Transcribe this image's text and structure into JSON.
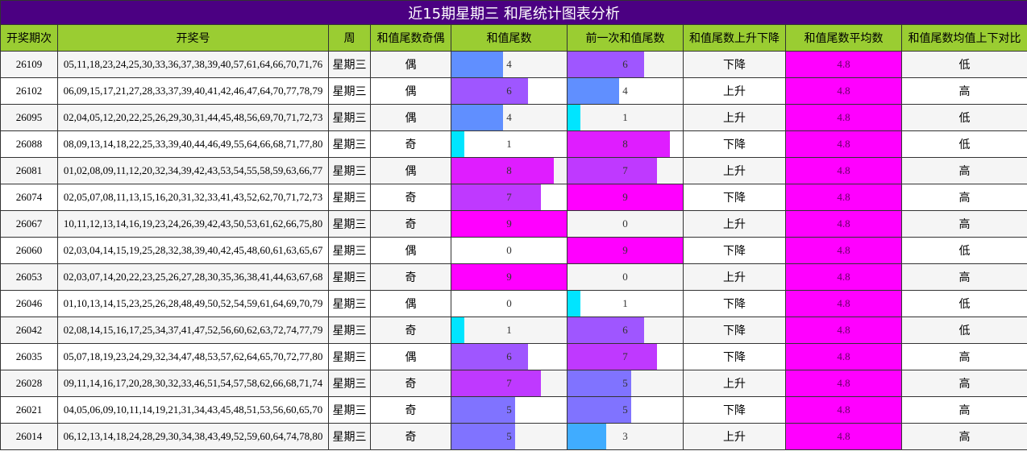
{
  "title": "近15期星期三 和尾统计图表分析",
  "table": {
    "headers": [
      "开奖期次",
      "开奖号",
      "周",
      "和值尾数奇偶",
      "和值尾数",
      "前一次和值尾数",
      "和值尾数上升下降",
      "和值尾数平均数",
      "和值尾数均值上下对比"
    ],
    "rows": [
      [
        "26109",
        "05,11,18,23,24,25,30,33,36,37,38,39,40,57,61,64,66,70,71,76",
        "星期三",
        "偶",
        4,
        6,
        "下降",
        4.8,
        "低"
      ],
      [
        "26102",
        "06,09,15,17,21,27,28,33,37,39,40,41,42,46,47,64,70,77,78,79",
        "星期三",
        "偶",
        6,
        4,
        "上升",
        4.8,
        "高"
      ],
      [
        "26095",
        "02,04,05,12,20,22,25,26,29,30,31,44,45,48,56,69,70,71,72,73",
        "星期三",
        "偶",
        4,
        1,
        "上升",
        4.8,
        "低"
      ],
      [
        "26088",
        "08,09,13,14,18,22,25,33,39,40,44,46,49,55,64,66,68,71,77,80",
        "星期三",
        "奇",
        1,
        8,
        "下降",
        4.8,
        "低"
      ],
      [
        "26081",
        "01,02,08,09,11,12,20,32,34,39,42,43,53,54,55,58,59,63,66,77",
        "星期三",
        "偶",
        8,
        7,
        "上升",
        4.8,
        "高"
      ],
      [
        "26074",
        "02,05,07,08,11,13,15,16,20,31,32,33,41,43,52,62,70,71,72,73",
        "星期三",
        "奇",
        7,
        9,
        "下降",
        4.8,
        "高"
      ],
      [
        "26067",
        "10,11,12,13,14,16,19,23,24,26,39,42,43,50,53,61,62,66,75,80",
        "星期三",
        "奇",
        9,
        0,
        "上升",
        4.8,
        "高"
      ],
      [
        "26060",
        "02,03,04,14,15,19,25,28,32,38,39,40,42,45,48,60,61,63,65,67",
        "星期三",
        "偶",
        0,
        9,
        "下降",
        4.8,
        "低"
      ],
      [
        "26053",
        "02,03,07,14,20,22,23,25,26,27,28,30,35,36,38,41,44,63,67,68",
        "星期三",
        "奇",
        9,
        0,
        "上升",
        4.8,
        "高"
      ],
      [
        "26046",
        "01,10,13,14,15,23,25,26,28,48,49,50,52,54,59,61,64,69,70,79",
        "星期三",
        "偶",
        0,
        1,
        "下降",
        4.8,
        "低"
      ],
      [
        "26042",
        "02,08,14,15,16,17,25,34,37,41,47,52,56,60,62,63,72,74,77,79",
        "星期三",
        "奇",
        1,
        6,
        "下降",
        4.8,
        "低"
      ],
      [
        "26035",
        "05,07,18,19,23,24,29,32,34,47,48,53,57,62,64,65,70,72,77,80",
        "星期三",
        "偶",
        6,
        7,
        "下降",
        4.8,
        "高"
      ],
      [
        "26028",
        "09,11,14,16,17,20,28,30,32,33,46,51,54,57,58,62,66,68,71,74",
        "星期三",
        "奇",
        7,
        5,
        "上升",
        4.8,
        "高"
      ],
      [
        "26021",
        "04,05,06,09,10,11,14,19,21,31,34,43,45,48,51,53,56,60,65,70",
        "星期三",
        "奇",
        5,
        5,
        "下降",
        4.8,
        "高"
      ],
      [
        "26014",
        "06,12,13,14,18,24,28,29,30,34,38,43,49,52,59,60,64,74,78,80",
        "星期三",
        "奇",
        5,
        3,
        "上升",
        4.8,
        "高"
      ]
    ]
  }
}
